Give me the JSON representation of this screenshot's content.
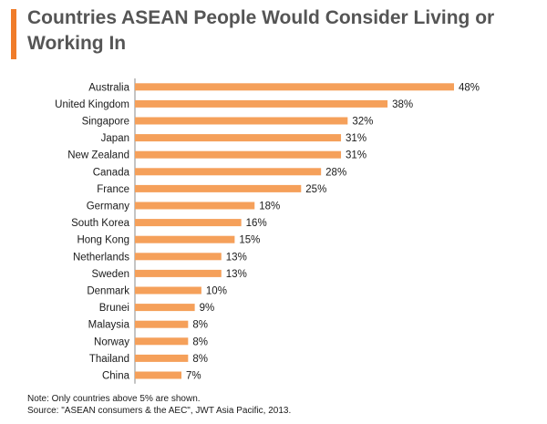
{
  "title": "Countries ASEAN People Would Consider Living or Working In",
  "colors": {
    "accent": "#f07c2a",
    "bar": "#f5a05a",
    "axis": "#888888"
  },
  "chart_data": {
    "type": "bar",
    "orientation": "horizontal",
    "title": "Countries ASEAN People Would Consider Living or Working In",
    "categories": [
      "Australia",
      "United Kingdom",
      "Singapore",
      "Japan",
      "New Zealand",
      "Canada",
      "France",
      "Germany",
      "South Korea",
      "Hong Kong",
      "Netherlands",
      "Sweden",
      "Denmark",
      "Brunei",
      "Malaysia",
      "Norway",
      "Thailand",
      "China"
    ],
    "values": [
      48,
      38,
      32,
      31,
      31,
      28,
      25,
      18,
      16,
      15,
      13,
      13,
      10,
      9,
      8,
      8,
      8,
      7
    ],
    "value_labels": [
      "48%",
      "38%",
      "32%",
      "31%",
      "31%",
      "28%",
      "25%",
      "18%",
      "16%",
      "15%",
      "13%",
      "13%",
      "10%",
      "9%",
      "8%",
      "8%",
      "8%",
      "7%"
    ],
    "unit": "%",
    "xlim": [
      0,
      48
    ],
    "grid": false,
    "legend": false
  },
  "footer": {
    "note": "Note:  Only countries above  5% are shown.",
    "source": "Source: \"ASEAN consumers & the AEC\", JWT Asia Pacific, 2013."
  }
}
